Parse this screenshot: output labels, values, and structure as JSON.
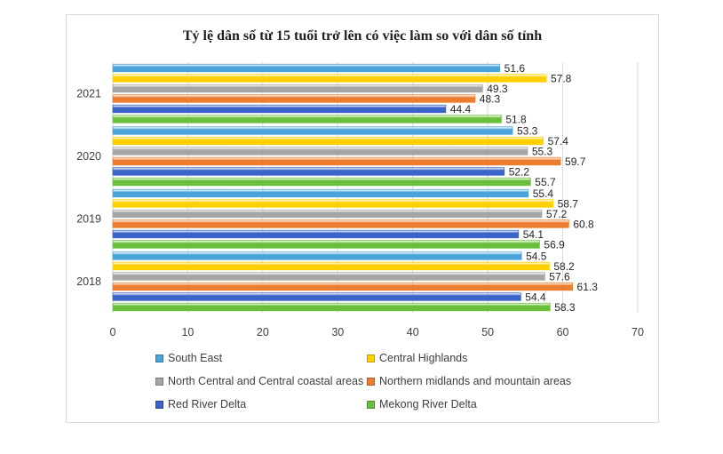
{
  "chart_data": {
    "type": "bar",
    "orientation": "horizontal",
    "title": "Tỷ lệ dân số từ 15 tuổi trở lên có việc làm so với dân số tỉnh",
    "categories": [
      "2021",
      "2020",
      "2019",
      "2018"
    ],
    "series": [
      {
        "name": "South East",
        "color": "#4aa3d9",
        "values": [
          51.6,
          53.3,
          55.4,
          54.5
        ]
      },
      {
        "name": "Central Highlands",
        "color": "#ffd000",
        "values": [
          57.8,
          57.4,
          58.7,
          58.2
        ]
      },
      {
        "name": "North Central and Central coastal areas",
        "color": "#a5a5a5",
        "values": [
          49.3,
          55.3,
          57.2,
          57.6
        ]
      },
      {
        "name": "Northern midlands and mountain areas",
        "color": "#ed7d31",
        "values": [
          48.3,
          59.7,
          60.8,
          61.3
        ]
      },
      {
        "name": "Red River Delta",
        "color": "#3a64c8",
        "values": [
          44.4,
          52.2,
          54.1,
          54.4
        ]
      },
      {
        "name": "Mekong River Delta",
        "color": "#6abf3a",
        "values": [
          51.8,
          55.7,
          56.9,
          58.3
        ]
      }
    ],
    "xlim": [
      0,
      70
    ],
    "xticks": [
      0,
      10,
      20,
      30,
      40,
      50,
      60,
      70
    ],
    "grid": true,
    "legend": "bottom"
  }
}
